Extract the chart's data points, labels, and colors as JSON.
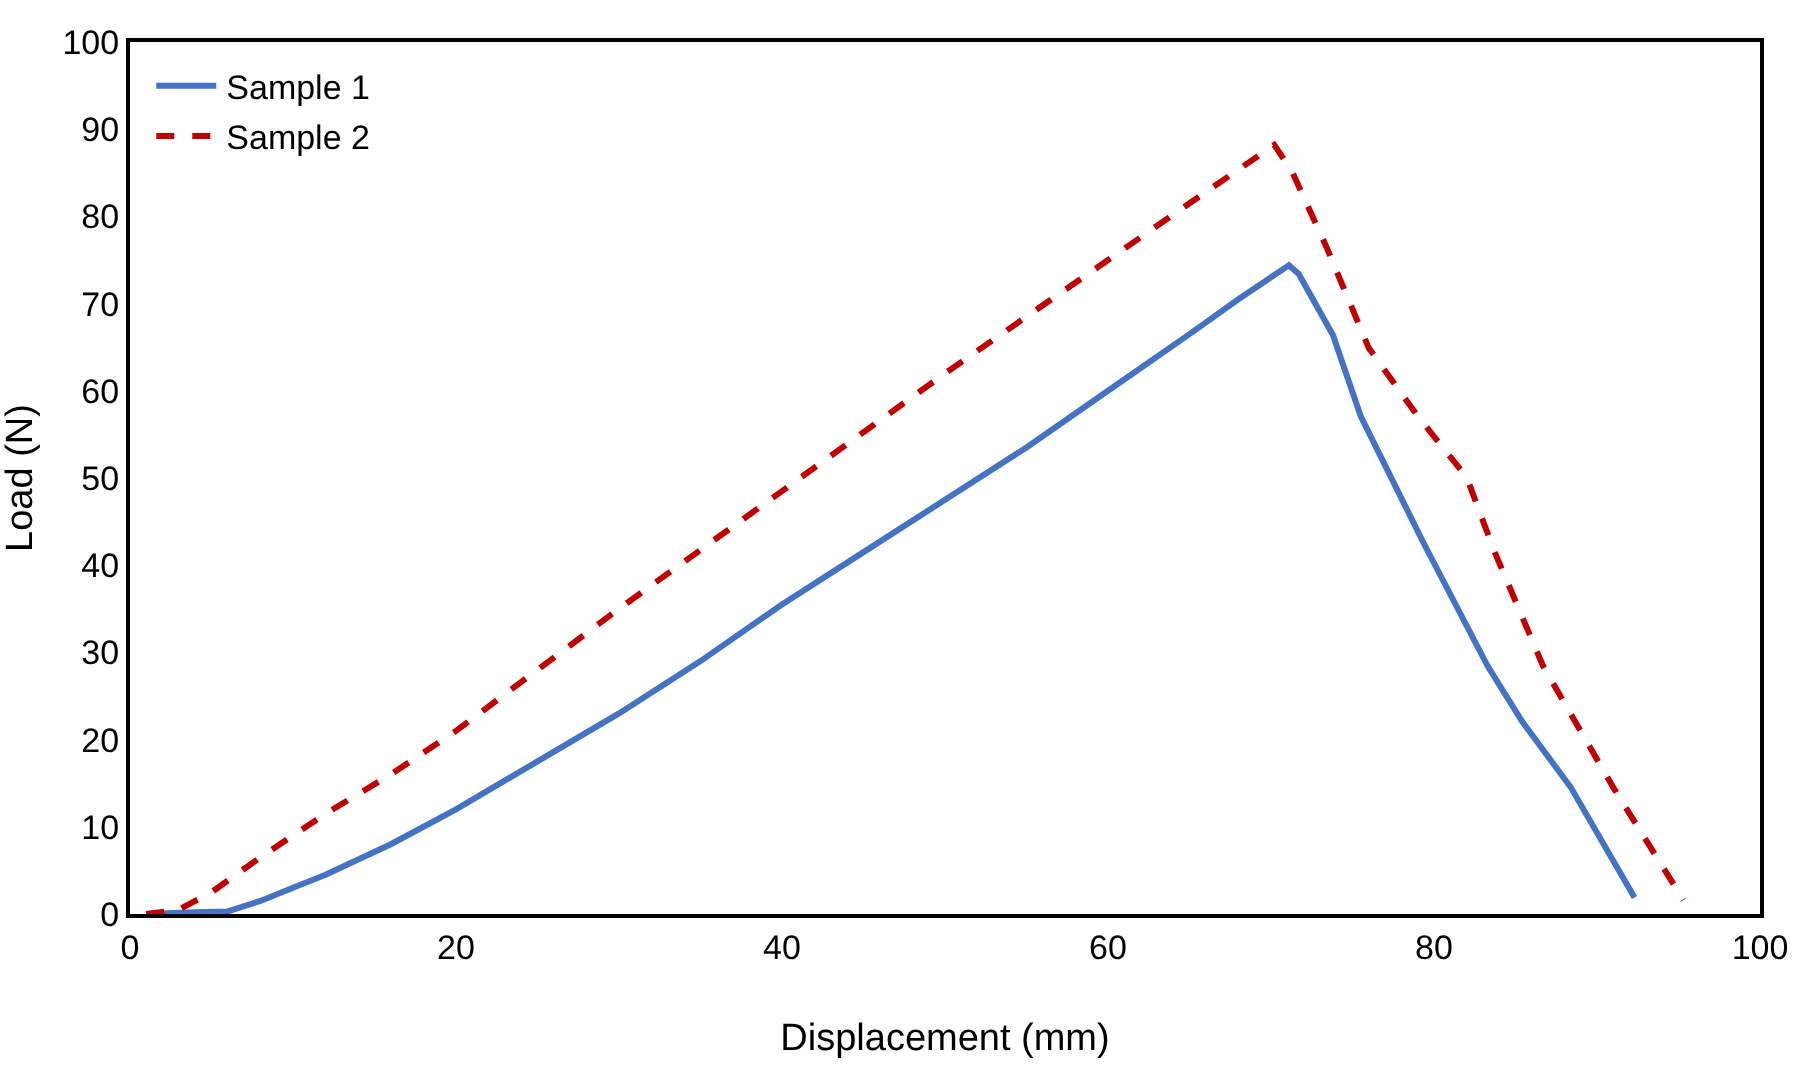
{
  "chart_data": {
    "type": "line",
    "xlabel": "Displacement (mm)",
    "ylabel": "Load (N)",
    "xlim": [
      0,
      100
    ],
    "xticks": [
      0,
      20,
      40,
      60,
      80,
      100
    ],
    "ylim": [
      0,
      100
    ],
    "yticks": [
      0,
      10,
      20,
      30,
      40,
      50,
      60,
      70,
      80,
      90,
      100
    ],
    "grid": false,
    "legend": "top left",
    "marker": "none",
    "series": [
      {
        "name": "Sample 1",
        "color": "#4472c4",
        "line_style": "solid",
        "x": [
          1,
          4,
          6,
          8,
          10,
          12,
          16,
          20,
          25,
          30,
          35,
          40,
          45,
          50,
          55,
          60,
          65,
          68,
          71.1,
          71.7,
          73.8,
          75.5,
          79.4,
          83.3,
          85.4,
          88.4,
          92.3
        ],
        "values": [
          0,
          0.2,
          0.3,
          1.5,
          3,
          4.5,
          8,
          12,
          17.5,
          23,
          29,
          35.5,
          41.5,
          47.5,
          53.5,
          60,
          66.5,
          70.5,
          74.4,
          73.4,
          66.4,
          57.1,
          42.4,
          28.4,
          22.1,
          14.5,
          1.9
        ]
      },
      {
        "name": "Sample 2",
        "color": "#c00000",
        "line_style": "dashed",
        "x": [
          1,
          3,
          5,
          8,
          12,
          16,
          20,
          30,
          40,
          50,
          60,
          65,
          70.2,
          71.3,
          73.4,
          76,
          79,
          82,
          83.7,
          86.7,
          91,
          95.3
        ],
        "values": [
          0,
          0.5,
          2.5,
          6.5,
          11.5,
          16,
          21,
          35,
          48.5,
          62,
          75,
          81.5,
          88.2,
          85.1,
          76.5,
          64.9,
          57.1,
          50.1,
          41.6,
          28.4,
          14.5,
          1.6
        ]
      }
    ]
  }
}
